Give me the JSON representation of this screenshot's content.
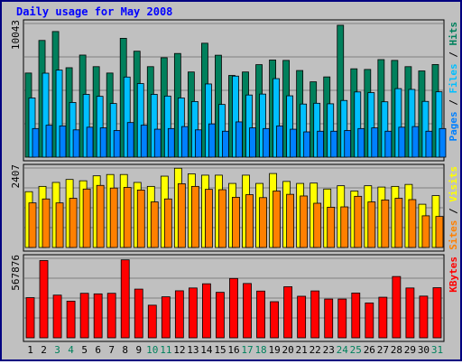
{
  "chart_data": {
    "type": "bar",
    "title": "Daily usage for May 2008",
    "categories": [
      "1",
      "2",
      "3",
      "4",
      "5",
      "6",
      "7",
      "8",
      "9",
      "10",
      "11",
      "12",
      "13",
      "14",
      "15",
      "16",
      "17",
      "18",
      "19",
      "20",
      "21",
      "22",
      "23",
      "24",
      "25",
      "26",
      "27",
      "28",
      "29",
      "30",
      "31"
    ],
    "weekend_days": [
      "3",
      "4",
      "10",
      "11",
      "17",
      "18",
      "24",
      "25",
      "31"
    ],
    "panels": [
      {
        "id": "hits_files_pages",
        "max_label": "10043",
        "ylim": [
          0,
          10043
        ],
        "grid": true,
        "legend": [
          "Pages",
          "Files",
          "Hits"
        ],
        "series": [
          {
            "name": "Hits",
            "color": "#00805c",
            "values": [
              6320,
              8770,
              9440,
              6720,
              7670,
              6800,
              6320,
              8930,
              7960,
              6800,
              7470,
              7790,
              6400,
              8560,
              7660,
              6140,
              6400,
              6950,
              7300,
              7270,
              6510,
              5660,
              6030,
              9910,
              6640,
              6590,
              7330,
              7270,
              6800,
              6480,
              6960
            ]
          },
          {
            "name": "Files",
            "color": "#00bfff",
            "values": [
              4450,
              6310,
              6540,
              4110,
              4720,
              4570,
              4030,
              6020,
              5530,
              4720,
              4590,
              4450,
              4180,
              5500,
              3960,
              6090,
              4670,
              4740,
              5900,
              4610,
              3990,
              4050,
              4010,
              4260,
              4900,
              4850,
              4160,
              5150,
              5090,
              4190,
              4910
            ]
          },
          {
            "name": "Pages",
            "color": "#0080ff",
            "values": [
              2150,
              2400,
              2350,
              2050,
              2250,
              2200,
              2000,
              2600,
              2400,
              2100,
              2150,
              2300,
              2050,
              2500,
              1950,
              2650,
              2200,
              2150,
              2350,
              2100,
              1900,
              1950,
              1950,
              2000,
              2150,
              2200,
              1950,
              2250,
              2300,
              1950,
              2150
            ]
          }
        ]
      },
      {
        "id": "sites_visits",
        "max_label": "2407",
        "ylim": [
          0,
          2407
        ],
        "grid": true,
        "legend": [
          "Sites",
          "Visits"
        ],
        "series": [
          {
            "name": "Visits",
            "color": "#ffff00",
            "values": [
              1690,
              1850,
              1970,
              2060,
              2020,
              2170,
              2210,
              2210,
              1970,
              1850,
              2160,
              2400,
              2230,
              2190,
              2190,
              1940,
              2190,
              1940,
              2240,
              2000,
              1940,
              1950,
              1770,
              1870,
              1710,
              1870,
              1830,
              1850,
              1910,
              1310,
              1570
            ]
          },
          {
            "name": "Sites",
            "color": "#ff8000",
            "values": [
              1350,
              1470,
              1350,
              1490,
              1770,
              1880,
              1800,
              1820,
              1740,
              1380,
              1470,
              1930,
              1850,
              1760,
              1750,
              1520,
              1600,
              1510,
              1710,
              1610,
              1560,
              1340,
              1220,
              1230,
              1550,
              1380,
              1440,
              1490,
              1450,
              960,
              940
            ]
          }
        ]
      },
      {
        "id": "kbytes",
        "max_label": "567876",
        "ylim": [
          0,
          567876
        ],
        "grid": true,
        "legend": [
          "KBytes"
        ],
        "series": [
          {
            "name": "KBytes",
            "color": "#ff0000",
            "values": [
              287000,
              552000,
              305000,
              262000,
              318000,
              314000,
              318000,
              557000,
              348000,
              233000,
              293000,
              336000,
              356000,
              386000,
              325000,
              424000,
              388000,
              334000,
              258000,
              365000,
              297000,
              335000,
              277000,
              277000,
              320000,
              249000,
              290000,
              438000,
              356000,
              298000,
              358000
            ]
          }
        ]
      }
    ]
  }
}
